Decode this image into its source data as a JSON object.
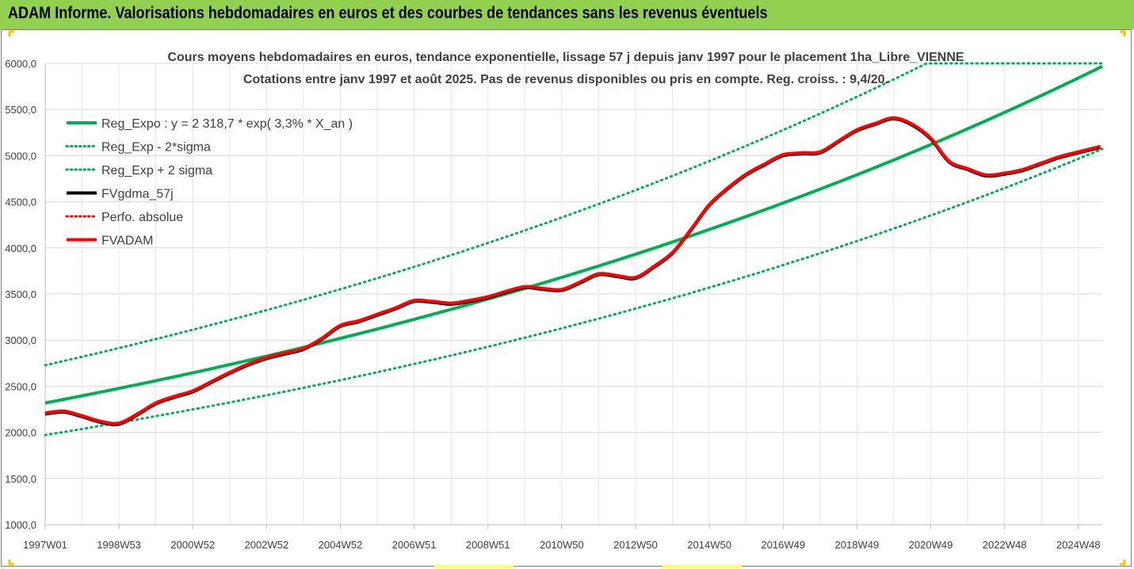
{
  "header": {
    "title": "ADAM Informe. Valorisations hebdomadaires en euros et des courbes de tendances sans les revenus éventuels"
  },
  "chart_data": {
    "type": "line",
    "title": "Cours moyens hebdomadaires en euros, tendance exponentielle, lissage 57 j depuis janv 1997 pour le placement 1ha_Libre_VIENNE",
    "subtitle": "Cotations entre janv 1997 et août 2025.  Pas de revenus disponibles ou pris en compte. Reg. croiss. : 9,4/20.",
    "xlabel": "",
    "ylabel": "",
    "ylim": [
      1000,
      6000
    ],
    "xlim": [
      1997.0,
      2025.65
    ],
    "grid": true,
    "legend_position": "top-left",
    "y_ticks": [
      "1000,0",
      "1500,0",
      "2000,0",
      "2500,0",
      "3000,0",
      "3500,0",
      "4000,0",
      "4500,0",
      "5000,0",
      "5500,0",
      "6000,0"
    ],
    "x_ticks": [
      {
        "label": "1997W01",
        "x": 1997.0
      },
      {
        "label": "1998W53",
        "x": 1999.0
      },
      {
        "label": "2000W52",
        "x": 2001.0
      },
      {
        "label": "2002W52",
        "x": 2003.0
      },
      {
        "label": "2004W52",
        "x": 2005.0
      },
      {
        "label": "2006W51",
        "x": 2007.0
      },
      {
        "label": "2008W51",
        "x": 2009.0
      },
      {
        "label": "2010W50",
        "x": 2011.0
      },
      {
        "label": "2012W50",
        "x": 2013.0
      },
      {
        "label": "2014W50",
        "x": 2015.0
      },
      {
        "label": "2016W49",
        "x": 2017.0
      },
      {
        "label": "2018W49",
        "x": 2019.0
      },
      {
        "label": "2020W49",
        "x": 2021.0
      },
      {
        "label": "2022W48",
        "x": 2023.0
      },
      {
        "label": "2024W48",
        "x": 2025.0
      }
    ],
    "regression": {
      "a": 2318.7,
      "rate": 0.033,
      "upper_factor": 1.1765,
      "lower_factor": 0.85,
      "upper_cap": 6000
    },
    "series": [
      {
        "name": "Reg_Expo : y = 2 318,7 * exp( 3,3% *  X_an )",
        "kind": "reg",
        "color": "#00b050",
        "style": "solid"
      },
      {
        "name": "Reg_Exp - 2*sigma",
        "kind": "reg_lower",
        "color": "#00b050",
        "style": "dotted"
      },
      {
        "name": "Reg_Exp + 2 sigma",
        "kind": "reg_upper",
        "color": "#00b050",
        "style": "dotted"
      },
      {
        "name": "FVgdma_57j",
        "kind": "data",
        "color": "#000000",
        "style": "solid"
      },
      {
        "name": "Perfo. absolue",
        "kind": "none",
        "color": "#ff0000",
        "style": "dotted"
      },
      {
        "name": "FVADAM",
        "kind": "data",
        "color": "#ff0000",
        "style": "solid"
      }
    ],
    "fvadam": {
      "x": [
        1997.0,
        1997.5,
        1998.0,
        1998.5,
        1999.0,
        1999.5,
        2000.0,
        2000.5,
        2001.0,
        2001.5,
        2002.0,
        2002.5,
        2003.0,
        2003.5,
        2004.0,
        2004.5,
        2005.0,
        2005.5,
        2006.0,
        2006.5,
        2007.0,
        2007.5,
        2008.0,
        2008.5,
        2009.0,
        2009.5,
        2010.0,
        2010.5,
        2011.0,
        2011.5,
        2012.0,
        2012.5,
        2013.0,
        2013.5,
        2014.0,
        2014.5,
        2015.0,
        2015.5,
        2016.0,
        2016.5,
        2017.0,
        2017.5,
        2018.0,
        2018.5,
        2019.0,
        2019.5,
        2020.0,
        2020.5,
        2021.0,
        2021.5,
        2022.0,
        2022.5,
        2023.0,
        2023.5,
        2024.0,
        2024.5,
        2025.0,
        2025.6
      ],
      "y": [
        2210,
        2230,
        2180,
        2120,
        2100,
        2200,
        2320,
        2390,
        2450,
        2550,
        2650,
        2740,
        2810,
        2860,
        2910,
        3020,
        3160,
        3210,
        3280,
        3350,
        3430,
        3420,
        3400,
        3430,
        3470,
        3530,
        3580,
        3560,
        3550,
        3630,
        3720,
        3700,
        3680,
        3800,
        3950,
        4200,
        4470,
        4650,
        4800,
        4910,
        5010,
        5030,
        5040,
        5160,
        5280,
        5350,
        5410,
        5340,
        5190,
        4940,
        4860,
        4790,
        4810,
        4850,
        4920,
        4990,
        5040,
        5100
      ]
    }
  }
}
